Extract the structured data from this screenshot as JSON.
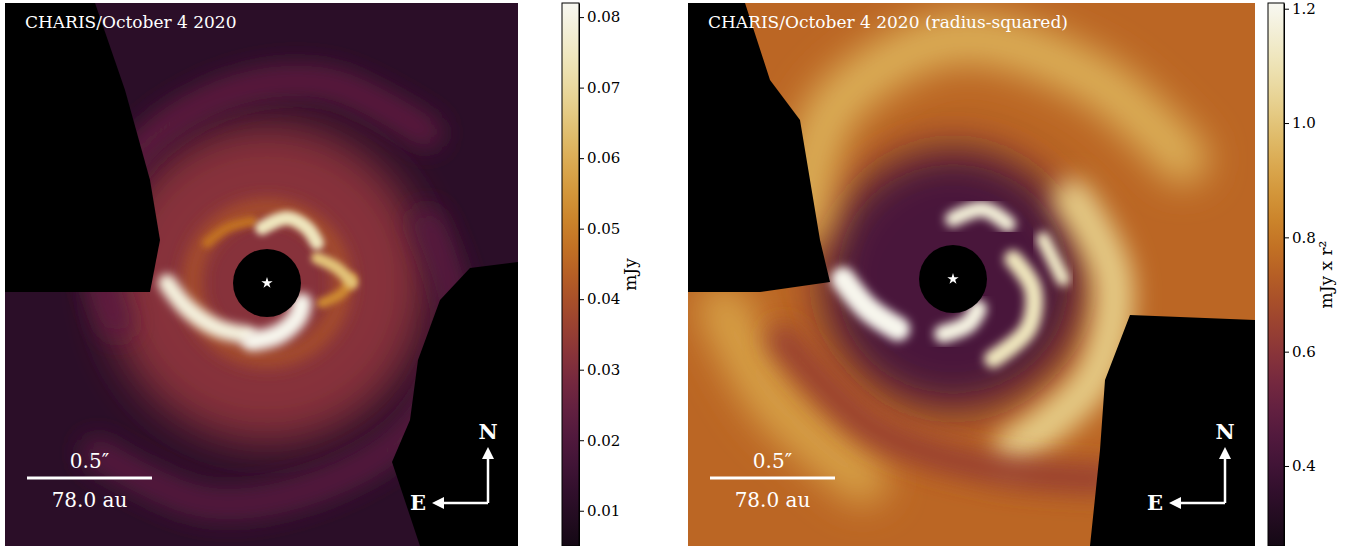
{
  "chart_data": [
    {
      "type": "image",
      "title": "CHARIS/October 4 2020",
      "scale_bar": {
        "angle_label": "0.5″",
        "distance_label": "78.0 au"
      },
      "compass": {
        "north": "N",
        "east": "E"
      },
      "colorbar_label": "mJy",
      "colorbar_range": [
        0.005,
        0.082
      ],
      "colorbar_ticks": [
        0.01,
        0.02,
        0.03,
        0.04,
        0.05,
        0.06,
        0.07,
        0.08
      ]
    },
    {
      "type": "image",
      "title": "CHARIS/October 4 2020 (radius-squared)",
      "scale_bar": {
        "angle_label": "0.5″",
        "distance_label": "78.0 au"
      },
      "compass": {
        "north": "N",
        "east": "E"
      },
      "colorbar_label": "mJy x r²",
      "colorbar_range": [
        0.26,
        1.21
      ],
      "colorbar_ticks": [
        0.4,
        0.6,
        0.8,
        {
          "value": 1.0,
          "label": "1.0"
        },
        1.2
      ]
    }
  ]
}
